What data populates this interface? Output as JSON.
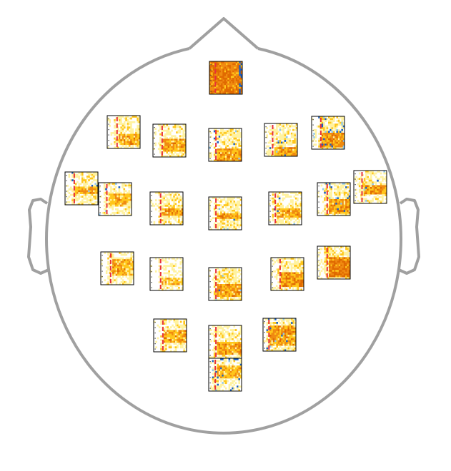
{
  "figure": {
    "kind": "EEG channel time-frequency topographic layout",
    "head_outline_color": "#a0a0a0",
    "panel_border_color": "#000000",
    "colormap": {
      "negative_strong": "#1a5fc4",
      "negative_weak": "#8ec8ef",
      "neutral": "#ffffff",
      "positive_weak": "#fff2a0",
      "positive_mid": "#ffc61a",
      "positive_strong": "#f08a10",
      "positive_max": "#e06a00"
    },
    "event_marker_color": "#e8303a",
    "panel_count": 25
  }
}
